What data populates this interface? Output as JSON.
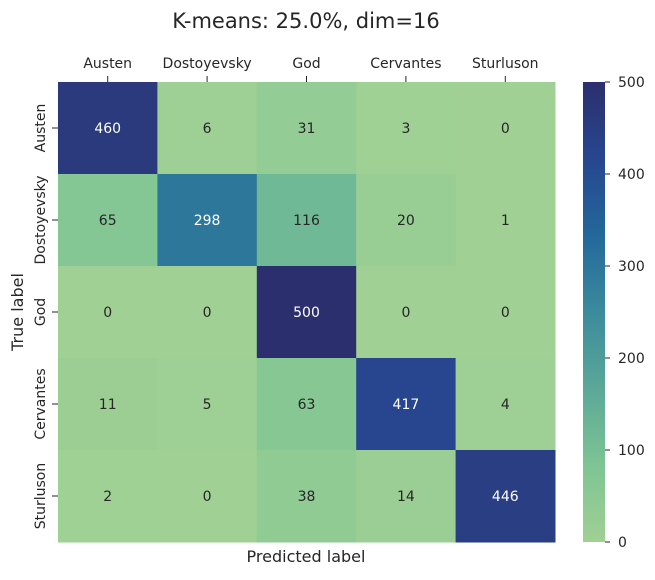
{
  "chart_data": {
    "type": "heatmap",
    "title": "K-means: 25.0%, dim=16",
    "xlabel": "Predicted label",
    "ylabel": "True label",
    "x_categories": [
      "Austen",
      "Dostoyevsky",
      "God",
      "Cervantes",
      "Sturluson"
    ],
    "y_categories": [
      "Austen",
      "Dostoyevsky",
      "God",
      "Cervantes",
      "Sturluson"
    ],
    "values": [
      [
        460,
        6,
        31,
        3,
        0
      ],
      [
        65,
        298,
        116,
        20,
        1
      ],
      [
        0,
        0,
        500,
        0,
        0
      ],
      [
        11,
        5,
        63,
        417,
        4
      ],
      [
        2,
        0,
        38,
        14,
        446
      ]
    ],
    "colorbar": {
      "min": 0,
      "max": 500,
      "ticks": [
        0,
        100,
        200,
        300,
        400,
        500
      ]
    },
    "colormap_stops": [
      "#a0d094",
      "#7ec494",
      "#5ba898",
      "#3b8b9d",
      "#23689a",
      "#27468f",
      "#2c2f6d"
    ]
  }
}
